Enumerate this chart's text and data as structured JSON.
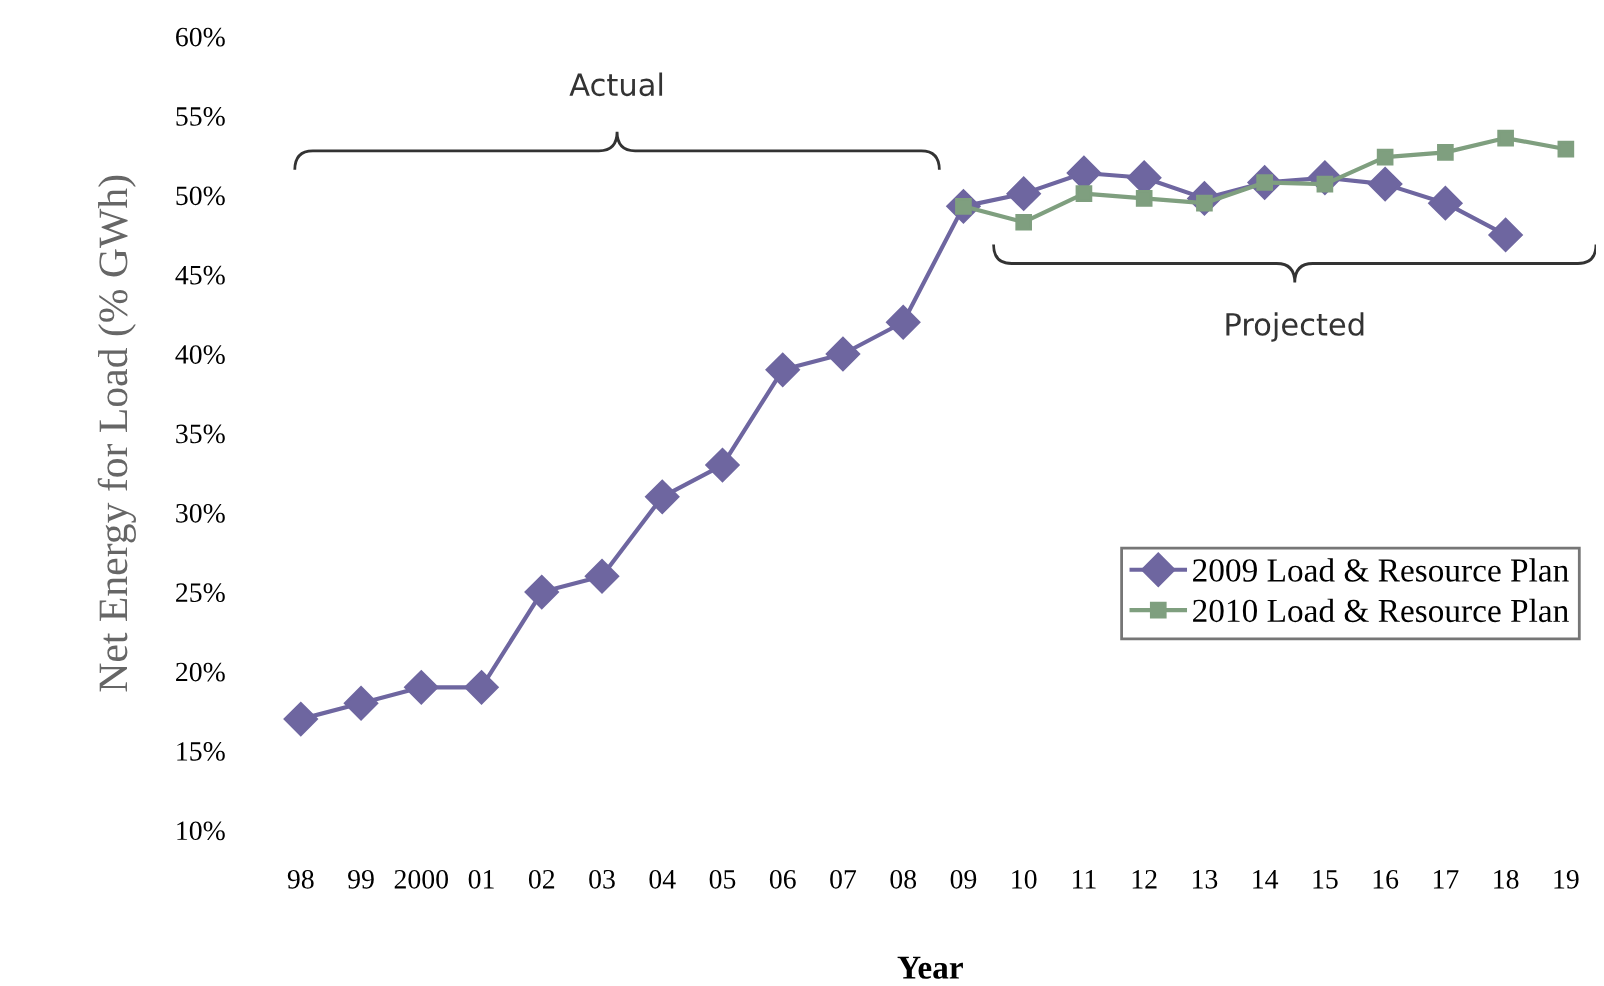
{
  "chart_data": {
    "type": "line",
    "xlabel": "Year",
    "ylabel": "Net Energy for Load (% GWh)",
    "categories": [
      "98",
      "99",
      "2000",
      "01",
      "02",
      "03",
      "04",
      "05",
      "06",
      "07",
      "08",
      "09",
      "10",
      "11",
      "12",
      "13",
      "14",
      "15",
      "16",
      "17",
      "18",
      "19"
    ],
    "series": [
      {
        "name": "2009 Load & Resource Plan",
        "color": "#6e66a0",
        "marker": "diamond",
        "values": [
          17,
          18,
          19,
          19,
          25,
          26,
          31,
          33,
          39,
          40,
          42,
          49.3,
          50.1,
          51.4,
          51.1,
          49.8,
          50.8,
          51.1,
          50.7,
          49.5,
          47.5,
          null
        ]
      },
      {
        "name": "2010 Load & Resource Plan",
        "color": "#7f9f7f",
        "marker": "square",
        "values": [
          null,
          null,
          null,
          null,
          null,
          null,
          null,
          null,
          null,
          null,
          null,
          49.3,
          48.3,
          50.1,
          49.8,
          49.5,
          50.8,
          50.7,
          52.4,
          52.7,
          53.6,
          52.9
        ]
      }
    ],
    "ylim": [
      10,
      60
    ],
    "yticks": [
      {
        "value": 10,
        "label": "10%"
      },
      {
        "value": 15,
        "label": "15%"
      },
      {
        "value": 20,
        "label": "20%"
      },
      {
        "value": 25,
        "label": "25%"
      },
      {
        "value": 30,
        "label": "30%"
      },
      {
        "value": 35,
        "label": "35%"
      },
      {
        "value": 40,
        "label": "40%"
      },
      {
        "value": 45,
        "label": "45%"
      },
      {
        "value": 50,
        "label": "50%"
      },
      {
        "value": 55,
        "label": "55%"
      },
      {
        "value": 60,
        "label": "60%"
      }
    ],
    "annotations": [
      "Actual",
      "Projected"
    ],
    "legend": "bottom right",
    "grid": false,
    "line_style": "solid"
  }
}
